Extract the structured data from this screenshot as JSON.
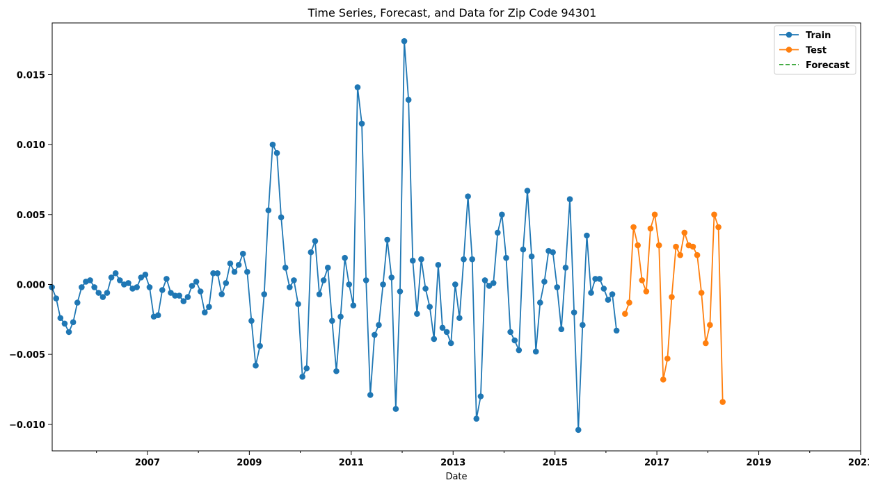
{
  "chart_data": {
    "type": "line",
    "title": "Time Series, Forecast, and Data for Zip Code 94301",
    "xlabel": "Date",
    "ylabel": "",
    "xlim": [
      2005.13,
      2021.0
    ],
    "ylim": [
      -0.0119,
      0.0187
    ],
    "x_ticks": [
      2007,
      2009,
      2011,
      2013,
      2015,
      2017,
      2019,
      2021
    ],
    "x_tick_labels": [
      "2007",
      "2009",
      "2011",
      "2013",
      "2015",
      "2017",
      "2019",
      "2021"
    ],
    "y_ticks": [
      -0.01,
      -0.005,
      0.0,
      0.005,
      0.01,
      0.015
    ],
    "y_tick_labels": [
      "−0.010",
      "−0.005",
      "0.000",
      "0.005",
      "0.010",
      "0.015"
    ],
    "legend": {
      "placement": "top-right",
      "entries": [
        {
          "label": "Train",
          "color": "#1f77b4",
          "style": "line-marker"
        },
        {
          "label": "Test",
          "color": "#ff7f0e",
          "style": "line-marker"
        },
        {
          "label": "Forecast",
          "color": "#2ca02c",
          "style": "dashed"
        }
      ]
    },
    "series": [
      {
        "name": "Train",
        "color": "#1f77b4",
        "x_start": 2005.125,
        "x_step": 0.0833333,
        "values": [
          -0.0002,
          -0.001,
          -0.0024,
          -0.0028,
          -0.0034,
          -0.0027,
          -0.0013,
          -0.0002,
          0.0002,
          0.0003,
          -0.0002,
          -0.0006,
          -0.0009,
          -0.0006,
          0.0005,
          0.0008,
          0.0003,
          0.0,
          0.0001,
          -0.0003,
          -0.0002,
          0.0005,
          0.0007,
          -0.0002,
          -0.0023,
          -0.0022,
          -0.0004,
          0.0004,
          -0.0006,
          -0.0008,
          -0.0008,
          -0.0012,
          -0.0009,
          -0.0001,
          0.0002,
          -0.0005,
          -0.002,
          -0.0016,
          0.0008,
          0.0008,
          -0.0007,
          0.0001,
          0.0015,
          0.0009,
          0.0014,
          0.0022,
          0.0009,
          -0.0026,
          -0.0058,
          -0.0044,
          -0.0007,
          0.0053,
          0.01,
          0.0094,
          0.0048,
          0.0012,
          -0.0002,
          0.0003,
          -0.0014,
          -0.0066,
          -0.006,
          0.0023,
          0.0031,
          -0.0007,
          0.0003,
          0.0012,
          -0.0026,
          -0.0062,
          -0.0023,
          0.0019,
          0.0,
          -0.0015,
          0.0141,
          0.0115,
          0.0003,
          -0.0079,
          -0.0036,
          -0.0029,
          0.0,
          0.0032,
          0.0005,
          -0.0089,
          -0.0005,
          0.0174,
          0.0132,
          0.0017,
          -0.0021,
          0.0018,
          -0.0003,
          -0.0016,
          -0.0039,
          0.0014,
          -0.0031,
          -0.0034,
          -0.0042,
          0.0,
          -0.0024,
          0.0018,
          0.0063,
          0.0018,
          -0.0096,
          -0.008,
          0.0003,
          -0.0001,
          0.0001,
          0.0037,
          0.005,
          0.0019,
          -0.0034,
          -0.004,
          -0.0047,
          0.0025,
          0.0067,
          0.002,
          -0.0048,
          -0.0013,
          0.0002,
          0.0024,
          0.0023,
          -0.0002,
          -0.0032,
          0.0012,
          0.0061,
          -0.002,
          -0.0104,
          -0.0029,
          0.0035,
          -0.0006,
          0.0004,
          0.0004,
          -0.0003,
          -0.0011,
          -0.0007,
          -0.0033
        ]
      },
      {
        "name": "Test",
        "color": "#ff7f0e",
        "x_start": 2016.375,
        "x_step": 0.0833333,
        "values": [
          -0.0021,
          -0.0013,
          0.0041,
          0.0028,
          0.0003,
          -0.0005,
          0.004,
          0.005,
          0.0028,
          -0.0068,
          -0.0053,
          -0.0009,
          0.0027,
          0.0021,
          0.0037,
          0.0028,
          0.0027,
          0.0021,
          -0.0006,
          -0.0042,
          -0.0029,
          0.005,
          0.0041,
          -0.0084
        ]
      },
      {
        "name": "Forecast",
        "color": "#2ca02c",
        "x_start": 2016.375,
        "x_step": 0.0833333,
        "values": []
      }
    ]
  }
}
